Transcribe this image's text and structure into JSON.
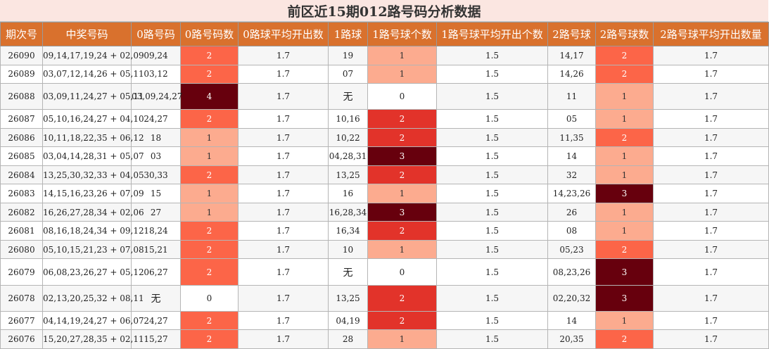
{
  "title": "前区近15期012路号码分析数据",
  "chart_data": {
    "type": "table",
    "title": "前区近15期012路号码分析数据",
    "columns": [
      "期次号",
      "中奖号码",
      "0路号码",
      "0路号码数",
      "0路球平均开出数",
      "1路球",
      "1路号球个数",
      "1路号球平均开出个数",
      "2路号球",
      "2路号球数",
      "2路号球平均开出数量"
    ],
    "rows": [
      [
        "26090",
        "09,14,17,19,24 + 02,09",
        "09,24",
        "2",
        "1.7",
        "19",
        "1",
        "1.5",
        "14,17",
        "2",
        "1.7"
      ],
      [
        "26089",
        "03,07,12,14,26 + 05,11",
        "03,12",
        "2",
        "1.7",
        "07",
        "1",
        "1.5",
        "14,26",
        "2",
        "1.7"
      ],
      [
        "26088",
        "03,09,11,24,27 + 05,11",
        "03,09,24,27",
        "4",
        "1.7",
        "无",
        "0",
        "1.5",
        "11",
        "1",
        "1.7"
      ],
      [
        "26087",
        "05,10,16,24,27 + 04,10",
        "24,27",
        "2",
        "1.7",
        "10,16",
        "2",
        "1.5",
        "05",
        "1",
        "1.7"
      ],
      [
        "26086",
        "10,11,18,22,35 + 06,12",
        "18",
        "1",
        "1.7",
        "10,22",
        "2",
        "1.5",
        "11,35",
        "2",
        "1.7"
      ],
      [
        "26085",
        "03,04,14,28,31 + 05,07",
        "03",
        "1",
        "1.7",
        "04,28,31",
        "3",
        "1.5",
        "14",
        "1",
        "1.7"
      ],
      [
        "26084",
        "13,25,30,32,33 + 04,05",
        "30,33",
        "2",
        "1.7",
        "13,25",
        "2",
        "1.5",
        "32",
        "1",
        "1.7"
      ],
      [
        "26083",
        "14,15,16,23,26 + 07,09",
        "15",
        "1",
        "1.7",
        "16",
        "1",
        "1.5",
        "14,23,26",
        "3",
        "1.7"
      ],
      [
        "26082",
        "16,26,27,28,34 + 02,06",
        "27",
        "1",
        "1.7",
        "16,28,34",
        "3",
        "1.5",
        "26",
        "1",
        "1.7"
      ],
      [
        "26081",
        "08,16,18,24,34 + 09,12",
        "18,24",
        "2",
        "1.7",
        "16,34",
        "2",
        "1.5",
        "08",
        "1",
        "1.7"
      ],
      [
        "26080",
        "05,10,15,21,23 + 07,08",
        "15,21",
        "2",
        "1.7",
        "10",
        "1",
        "1.5",
        "05,23",
        "2",
        "1.7"
      ],
      [
        "26079",
        "06,08,23,26,27 + 05,12",
        "06,27",
        "2",
        "1.7",
        "无",
        "0",
        "1.5",
        "08,23,26",
        "3",
        "1.7"
      ],
      [
        "26078",
        "02,13,20,25,32 + 08,11",
        "无",
        "0",
        "1.7",
        "13,25",
        "2",
        "1.5",
        "02,20,32",
        "3",
        "1.7"
      ],
      [
        "26077",
        "04,14,19,24,27 + 06,07",
        "24,27",
        "2",
        "1.7",
        "04,19",
        "2",
        "1.5",
        "14",
        "1",
        "1.7"
      ],
      [
        "26076",
        "15,20,27,28,35 + 02,11",
        "15,27",
        "2",
        "1.7",
        "28",
        "1",
        "1.5",
        "20,35",
        "2",
        "1.7"
      ]
    ],
    "heat_columns": [
      3,
      6,
      9
    ],
    "colors": {
      "header_bg": "#d9712d",
      "title_bg": "#fbe6e1",
      "count_0": "#ffffff",
      "count_1": "#fcab8f",
      "count_2": "#fc6548",
      "count_2_mid": "#e2332a",
      "count_3_plus": "#67000d"
    }
  }
}
